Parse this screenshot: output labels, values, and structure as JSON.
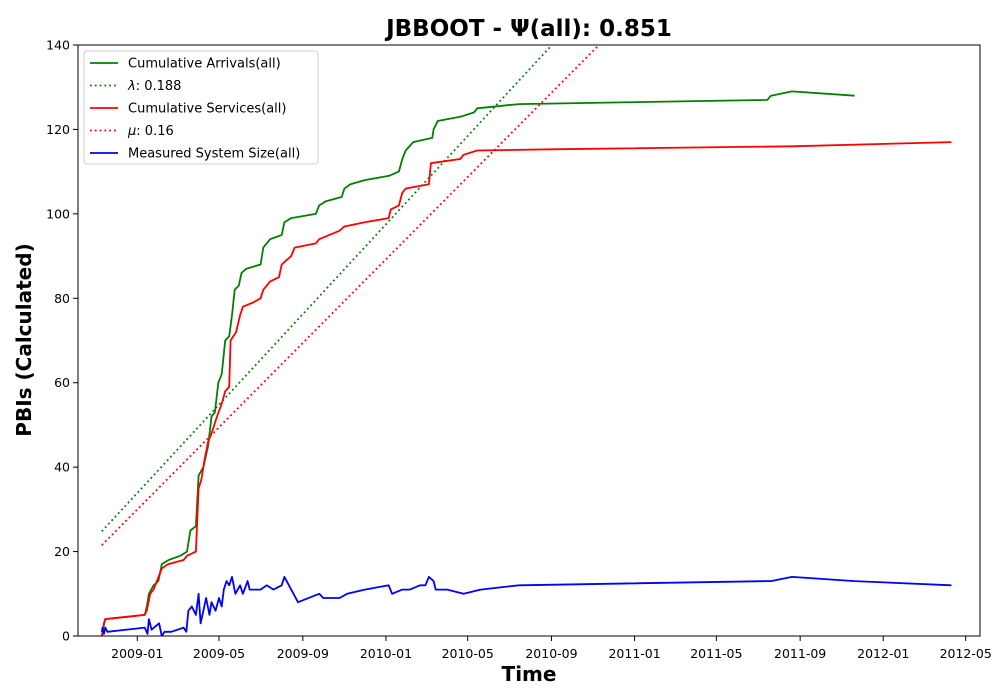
{
  "chart_data": {
    "type": "line",
    "title": "JBBOOT -  Ψ(all): 0.851",
    "xlabel": "Time",
    "ylabel": "PBIs (Calculated)",
    "ylim": [
      0,
      140
    ],
    "xlim": [
      "2008-10-06",
      "2012-05-22"
    ],
    "xticks": [
      "2009-01",
      "2009-05",
      "2009-09",
      "2010-01",
      "2010-05",
      "2010-09",
      "2011-01",
      "2011-05",
      "2011-09",
      "2012-01",
      "2012-05"
    ],
    "yticks": [
      0,
      20,
      40,
      60,
      80,
      100,
      120,
      140
    ],
    "grid": false,
    "legend_position": "top-left",
    "colors": {
      "green": "#008000",
      "red": "#ff0000",
      "blue": "#0000ff"
    },
    "series": [
      {
        "name": "Cumulative Arrivals(all)",
        "color": "#008000",
        "style": "solid",
        "points": [
          [
            "2008-11-10",
            1
          ],
          [
            "2008-11-12",
            2
          ],
          [
            "2008-11-15",
            4
          ],
          [
            "2009-01-12",
            5
          ],
          [
            "2009-01-15",
            7
          ],
          [
            "2009-01-18",
            10
          ],
          [
            "2009-01-25",
            12
          ],
          [
            "2009-02-01",
            13
          ],
          [
            "2009-02-06",
            17
          ],
          [
            "2009-02-16",
            18
          ],
          [
            "2009-03-05",
            19
          ],
          [
            "2009-03-15",
            20
          ],
          [
            "2009-03-20",
            25
          ],
          [
            "2009-03-28",
            26
          ],
          [
            "2009-04-01",
            38
          ],
          [
            "2009-04-08",
            40
          ],
          [
            "2009-04-15",
            45
          ],
          [
            "2009-04-20",
            52
          ],
          [
            "2009-04-25",
            53
          ],
          [
            "2009-04-30",
            60
          ],
          [
            "2009-05-05",
            62
          ],
          [
            "2009-05-10",
            70
          ],
          [
            "2009-05-16",
            71
          ],
          [
            "2009-05-20",
            76
          ],
          [
            "2009-05-24",
            82
          ],
          [
            "2009-05-30",
            83
          ],
          [
            "2009-06-03",
            86
          ],
          [
            "2009-06-10",
            87
          ],
          [
            "2009-07-01",
            88
          ],
          [
            "2009-07-05",
            92
          ],
          [
            "2009-07-15",
            94
          ],
          [
            "2009-08-01",
            95
          ],
          [
            "2009-08-05",
            98
          ],
          [
            "2009-08-15",
            99
          ],
          [
            "2009-09-20",
            100
          ],
          [
            "2009-09-25",
            102
          ],
          [
            "2009-10-05",
            103
          ],
          [
            "2009-10-28",
            104
          ],
          [
            "2009-11-01",
            106
          ],
          [
            "2009-11-10",
            107
          ],
          [
            "2009-12-01",
            108
          ],
          [
            "2010-01-05",
            109
          ],
          [
            "2010-01-20",
            110
          ],
          [
            "2010-01-25",
            113
          ],
          [
            "2010-01-30",
            115
          ],
          [
            "2010-02-10",
            117
          ],
          [
            "2010-03-10",
            118
          ],
          [
            "2010-03-12",
            120
          ],
          [
            "2010-03-18",
            122
          ],
          [
            "2010-04-20",
            123
          ],
          [
            "2010-05-10",
            124
          ],
          [
            "2010-05-15",
            125
          ],
          [
            "2010-07-15",
            126
          ],
          [
            "2011-07-15",
            127
          ],
          [
            "2011-07-20",
            128
          ],
          [
            "2011-08-20",
            129
          ],
          [
            "2011-11-20",
            128
          ]
        ]
      },
      {
        "name": "λ: 0.188",
        "label_math": "λ",
        "label_value": ": 0.188",
        "color": "#008000",
        "style": "dotted",
        "points": [
          [
            "2008-11-10",
            24.8
          ],
          [
            "2010-09-13",
            142
          ]
        ]
      },
      {
        "name": "Cumulative Services(all)",
        "color": "#ff0000",
        "style": "solid",
        "points": [
          [
            "2008-11-10",
            0
          ],
          [
            "2008-11-13",
            3
          ],
          [
            "2008-11-15",
            4
          ],
          [
            "2009-01-12",
            5
          ],
          [
            "2009-01-15",
            6
          ],
          [
            "2009-01-20",
            10
          ],
          [
            "2009-01-25",
            11
          ],
          [
            "2009-02-06",
            16
          ],
          [
            "2009-02-15",
            17
          ],
          [
            "2009-03-10",
            18
          ],
          [
            "2009-03-15",
            19
          ],
          [
            "2009-03-28",
            20
          ],
          [
            "2009-04-01",
            35
          ],
          [
            "2009-04-05",
            37
          ],
          [
            "2009-04-10",
            42
          ],
          [
            "2009-04-15",
            46
          ],
          [
            "2009-04-20",
            48
          ],
          [
            "2009-04-28",
            52
          ],
          [
            "2009-05-05",
            55
          ],
          [
            "2009-05-10",
            58
          ],
          [
            "2009-05-16",
            59
          ],
          [
            "2009-05-18",
            70
          ],
          [
            "2009-05-26",
            72
          ],
          [
            "2009-06-01",
            76
          ],
          [
            "2009-06-05",
            78
          ],
          [
            "2009-06-20",
            79
          ],
          [
            "2009-07-01",
            80
          ],
          [
            "2009-07-05",
            82
          ],
          [
            "2009-07-15",
            84
          ],
          [
            "2009-07-28",
            85
          ],
          [
            "2009-08-01",
            88
          ],
          [
            "2009-08-15",
            90
          ],
          [
            "2009-08-20",
            92
          ],
          [
            "2009-09-20",
            93
          ],
          [
            "2009-09-25",
            94
          ],
          [
            "2009-10-25",
            96
          ],
          [
            "2009-11-01",
            97
          ],
          [
            "2009-12-01",
            98
          ],
          [
            "2010-01-05",
            99
          ],
          [
            "2010-01-08",
            101
          ],
          [
            "2010-01-20",
            102
          ],
          [
            "2010-01-25",
            105
          ],
          [
            "2010-01-30",
            106
          ],
          [
            "2010-03-05",
            107
          ],
          [
            "2010-03-08",
            112
          ],
          [
            "2010-04-20",
            113
          ],
          [
            "2010-04-25",
            114
          ],
          [
            "2010-05-15",
            115
          ],
          [
            "2010-09-01",
            115.3
          ],
          [
            "2011-08-20",
            116
          ],
          [
            "2012-04-10",
            117
          ]
        ]
      },
      {
        "name": "μ: 0.16",
        "label_math": "μ",
        "label_value": ": 0.16",
        "color": "#ff0000",
        "style": "dotted",
        "points": [
          [
            "2008-11-10",
            21.5
          ],
          [
            "2010-11-22",
            142
          ]
        ]
      },
      {
        "name": "Measured System Size(all)",
        "color": "#0000ff",
        "style": "solid",
        "points": [
          [
            "2008-11-10",
            1
          ],
          [
            "2008-11-11",
            2
          ],
          [
            "2008-11-13",
            0.5
          ],
          [
            "2008-11-15",
            2
          ],
          [
            "2008-11-18",
            1
          ],
          [
            "2009-01-12",
            2
          ],
          [
            "2009-01-16",
            0.5
          ],
          [
            "2009-01-18",
            4
          ],
          [
            "2009-01-22",
            1.5
          ],
          [
            "2009-02-02",
            3
          ],
          [
            "2009-02-06",
            0
          ],
          [
            "2009-02-10",
            1
          ],
          [
            "2009-02-20",
            1
          ],
          [
            "2009-03-10",
            2
          ],
          [
            "2009-03-14",
            1
          ],
          [
            "2009-03-17",
            6
          ],
          [
            "2009-03-22",
            7
          ],
          [
            "2009-03-28",
            5
          ],
          [
            "2009-04-01",
            10
          ],
          [
            "2009-04-04",
            3
          ],
          [
            "2009-04-08",
            6
          ],
          [
            "2009-04-12",
            9
          ],
          [
            "2009-04-17",
            5
          ],
          [
            "2009-04-20",
            8
          ],
          [
            "2009-04-26",
            6
          ],
          [
            "2009-05-01",
            9
          ],
          [
            "2009-05-05",
            7
          ],
          [
            "2009-05-08",
            11
          ],
          [
            "2009-05-12",
            13
          ],
          [
            "2009-05-16",
            12
          ],
          [
            "2009-05-20",
            14
          ],
          [
            "2009-05-25",
            10
          ],
          [
            "2009-06-01",
            12
          ],
          [
            "2009-06-05",
            10
          ],
          [
            "2009-06-12",
            13
          ],
          [
            "2009-06-15",
            11
          ],
          [
            "2009-07-01",
            11
          ],
          [
            "2009-07-10",
            12
          ],
          [
            "2009-07-20",
            11
          ],
          [
            "2009-08-01",
            12
          ],
          [
            "2009-08-05",
            14
          ],
          [
            "2009-08-15",
            11
          ],
          [
            "2009-08-25",
            8
          ],
          [
            "2009-09-25",
            10
          ],
          [
            "2009-10-01",
            9
          ],
          [
            "2009-10-25",
            9
          ],
          [
            "2009-11-05",
            10
          ],
          [
            "2009-12-01",
            11
          ],
          [
            "2010-01-05",
            12
          ],
          [
            "2010-01-10",
            10
          ],
          [
            "2010-01-25",
            11
          ],
          [
            "2010-02-05",
            11
          ],
          [
            "2010-02-20",
            12
          ],
          [
            "2010-02-28",
            12
          ],
          [
            "2010-03-05",
            14
          ],
          [
            "2010-03-12",
            13
          ],
          [
            "2010-03-15",
            11
          ],
          [
            "2010-04-01",
            11
          ],
          [
            "2010-04-25",
            10
          ],
          [
            "2010-05-20",
            11
          ],
          [
            "2010-07-15",
            12
          ],
          [
            "2011-07-15",
            13
          ],
          [
            "2011-07-20",
            13
          ],
          [
            "2011-08-20",
            14
          ],
          [
            "2011-11-20",
            13
          ],
          [
            "2012-04-10",
            12
          ]
        ]
      }
    ]
  }
}
